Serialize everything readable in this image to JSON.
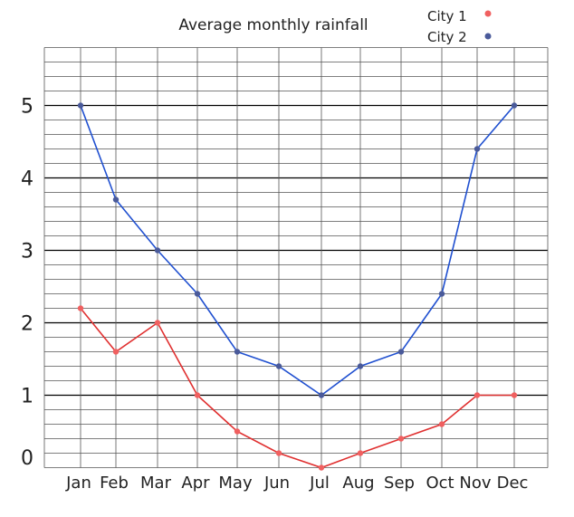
{
  "chart_data": {
    "type": "line",
    "title": "Average monthly rainfall",
    "xlabel": "",
    "ylabel": "",
    "categories": [
      "Jan",
      "Feb",
      "Mar",
      "Apr",
      "May",
      "Jun",
      "Jul",
      "Aug",
      "Sep",
      "Oct",
      "Nov",
      "Dec"
    ],
    "ylim": [
      0,
      5.8
    ],
    "yticks": [
      "0",
      "1",
      "2",
      "3",
      "4",
      "5"
    ],
    "grid": true,
    "minor_grid_step": 0.2,
    "legend_placement": "top-right",
    "series": [
      {
        "name": "City 1",
        "color": "#e03030",
        "marker_color": "#f06060",
        "values": [
          2.2,
          1.6,
          2.0,
          1.0,
          0.5,
          0.2,
          0.0,
          0.2,
          0.4,
          0.6,
          1.0,
          1.0
        ]
      },
      {
        "name": "City 2",
        "color": "#2050d0",
        "marker_color": "#4a5a9a",
        "values": [
          5.0,
          3.7,
          3.0,
          2.4,
          1.6,
          1.4,
          1.0,
          1.4,
          1.6,
          2.4,
          4.4,
          5.0
        ]
      }
    ]
  }
}
